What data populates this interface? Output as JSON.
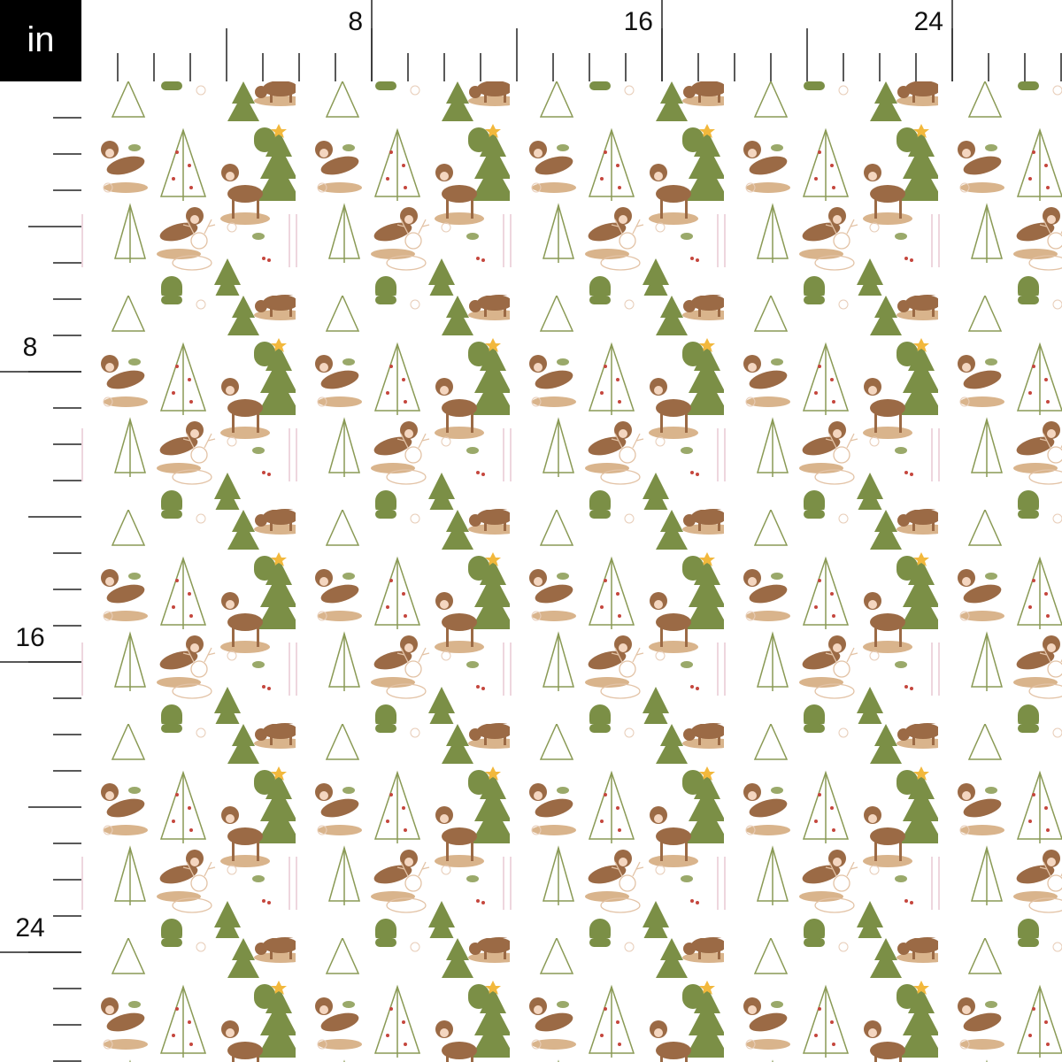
{
  "unit": "in",
  "ruler": {
    "top": [
      8,
      16,
      24
    ],
    "left": [
      8,
      16,
      24
    ]
  }
}
